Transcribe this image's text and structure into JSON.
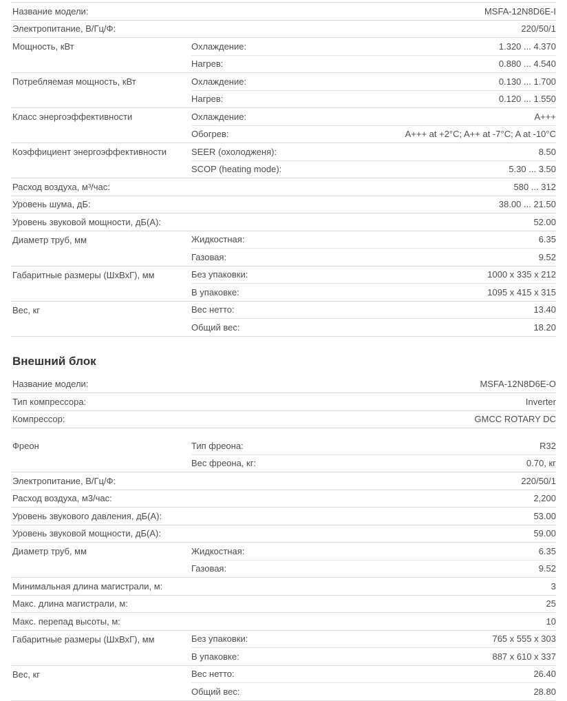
{
  "page": {
    "background": "#ffffff",
    "text_color": "#4d4d4d",
    "heading_color": "#333333",
    "divider_color": "#d7d7d7",
    "inner_divider_color": "#e4e4e4"
  },
  "sections": [
    {
      "heading": "",
      "tables": [
        {
          "top_border": true,
          "groups": [
            {
              "label": "Название модели:",
              "rows": [
                {
                  "sub": "",
                  "value": "MSFA-12N8D6E-I"
                }
              ]
            },
            {
              "label": "Электропитание, В/Гц/Ф:",
              "rows": [
                {
                  "sub": "",
                  "value": "220/50/1"
                }
              ]
            },
            {
              "label": "Мощность, кВт",
              "rows": [
                {
                  "sub": "Охлаждение:",
                  "value": "1.320 ... 4.370"
                },
                {
                  "sub": "Нагрев:",
                  "value": "0.880 ... 4.540"
                }
              ]
            },
            {
              "label": "Потребляемая мощность, кВт",
              "rows": [
                {
                  "sub": "Охлаждение:",
                  "value": "0.130 ... 1.700"
                },
                {
                  "sub": "Нагрев:",
                  "value": "0.120 ... 1.550"
                }
              ]
            },
            {
              "label": "Класс энергоэффективности",
              "rows": [
                {
                  "sub": "Охлаждение:",
                  "value": "A+++"
                },
                {
                  "sub": "Обогрев:",
                  "value": "A+++ at +2°C; A++ at -7°C; A at -10°C"
                }
              ]
            },
            {
              "label": "Коэффициент энергоэффективности",
              "rows": [
                {
                  "sub": "SEER (охолодженя):",
                  "value": "8.50"
                },
                {
                  "sub": "SCOP (heating mode):",
                  "value": "5.30 ... 3.50"
                }
              ]
            },
            {
              "label": "Расход воздуха, м³/час:",
              "rows": [
                {
                  "sub": "",
                  "value": "580 ... 312"
                }
              ]
            },
            {
              "label": "Уровень шума, дБ:",
              "rows": [
                {
                  "sub": "",
                  "value": "38.00 ... 21.50"
                }
              ]
            },
            {
              "label": "Уровень звуковой мощности, дБ(А):",
              "rows": [
                {
                  "sub": "",
                  "value": "52.00"
                }
              ]
            },
            {
              "label": "Диаметр труб, мм",
              "rows": [
                {
                  "sub": "Жидкостная:",
                  "value": "6.35"
                },
                {
                  "sub": "Газовая:",
                  "value": "9.52"
                }
              ]
            },
            {
              "label": "Габаритные размеры (ШхВхГ), мм",
              "rows": [
                {
                  "sub": "Без упаковки:",
                  "value": "1000 x 335 x 212"
                },
                {
                  "sub": "В упаковке:",
                  "value": "1095 x 415 x 315"
                }
              ]
            },
            {
              "label": "Вес, кг",
              "rows": [
                {
                  "sub": "Вес нетто:",
                  "value": "13.40"
                },
                {
                  "sub": "Общий вес:",
                  "value": "18.20"
                }
              ]
            }
          ]
        }
      ]
    },
    {
      "heading": "Внешний блок",
      "tables": [
        {
          "top_border": false,
          "groups": [
            {
              "label": "Название модели:",
              "rows": [
                {
                  "sub": "",
                  "value": "MSFA-12N8D6E-O"
                }
              ]
            },
            {
              "label": "Тип компрессора:",
              "rows": [
                {
                  "sub": "",
                  "value": "Inverter"
                }
              ]
            },
            {
              "label": "Компрессор:",
              "rows": [
                {
                  "sub": "",
                  "value": "GMCC ROTARY DC"
                }
              ]
            }
          ]
        },
        {
          "top_border": false,
          "gap_top": true,
          "groups": [
            {
              "label": "Фреон",
              "rows": [
                {
                  "sub": "Тип фреона:",
                  "value": "R32"
                },
                {
                  "sub": "Вес фреона, кг:",
                  "value": "0.70, кг"
                }
              ]
            },
            {
              "label": "Электропитание, В/Гц/Ф:",
              "rows": [
                {
                  "sub": "",
                  "value": "220/50/1"
                }
              ]
            },
            {
              "label": "Расход воздуха, м3/час:",
              "rows": [
                {
                  "sub": "",
                  "value": "2,200"
                }
              ]
            },
            {
              "label": "Уровень звукового давления, дБ(А):",
              "rows": [
                {
                  "sub": "",
                  "value": "53.00"
                }
              ]
            },
            {
              "label": "Уровень звуковой мощности, дБ(А):",
              "rows": [
                {
                  "sub": "",
                  "value": "59.00"
                }
              ]
            },
            {
              "label": "Диаметр труб, мм",
              "rows": [
                {
                  "sub": "Жидкостная:",
                  "value": "6.35"
                },
                {
                  "sub": "Газовая:",
                  "value": "9.52"
                }
              ]
            },
            {
              "label": "Минимальная длина магистрали, м:",
              "rows": [
                {
                  "sub": "",
                  "value": "3"
                }
              ]
            },
            {
              "label": "Макс. длина магистрали, м:",
              "rows": [
                {
                  "sub": "",
                  "value": "25"
                }
              ]
            },
            {
              "label": "Макс. перепад высоты, м:",
              "rows": [
                {
                  "sub": "",
                  "value": "10"
                }
              ]
            },
            {
              "label": "Габаритные размеры (ШхВхГ), мм",
              "rows": [
                {
                  "sub": "Без упаковки:",
                  "value": "765 x 555 x 303"
                },
                {
                  "sub": "В упаковке:",
                  "value": "887 x 610 x 337"
                }
              ]
            },
            {
              "label": "Вес, кг",
              "rows": [
                {
                  "sub": "Вес нетто:",
                  "value": "26.40"
                },
                {
                  "sub": "Общий вес:",
                  "value": "28.80"
                }
              ]
            }
          ]
        }
      ]
    }
  ]
}
